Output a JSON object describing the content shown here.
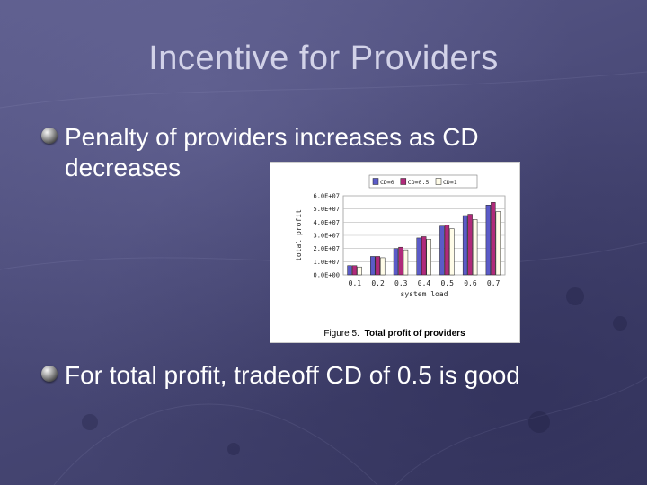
{
  "slide": {
    "title": "Incentive for Providers",
    "bullets": [
      "Penalty of providers increases as CD decreases",
      "For total profit, tradeoff CD of 0.5 is good"
    ]
  },
  "figure": {
    "caption_prefix": "Figure 5.",
    "caption_text": "Total profit of providers"
  },
  "chart_data": {
    "type": "bar",
    "xlabel": "system load",
    "ylabel": "total profit",
    "categories": [
      "0.1",
      "0.2",
      "0.3",
      "0.4",
      "0.5",
      "0.6",
      "0.7"
    ],
    "yticks": [
      "0.0E+00",
      "1.0E+07",
      "2.0E+07",
      "3.0E+07",
      "4.0E+07",
      "5.0E+07",
      "6.0E+07"
    ],
    "ylim": [
      0,
      60000000
    ],
    "series": [
      {
        "name": "CD=0",
        "color": "#5b5bc8",
        "values": [
          7000000,
          14000000,
          20000000,
          28000000,
          37000000,
          45000000,
          53000000
        ]
      },
      {
        "name": "CD=0.5",
        "color": "#b02a7a",
        "values": [
          7000000,
          14000000,
          21000000,
          29000000,
          38000000,
          46000000,
          55000000
        ]
      },
      {
        "name": "CD=1",
        "color": "#fffce8",
        "values": [
          6000000,
          13000000,
          19000000,
          27000000,
          35000000,
          42000000,
          48000000
        ]
      }
    ],
    "legend": "top",
    "grid": true
  }
}
